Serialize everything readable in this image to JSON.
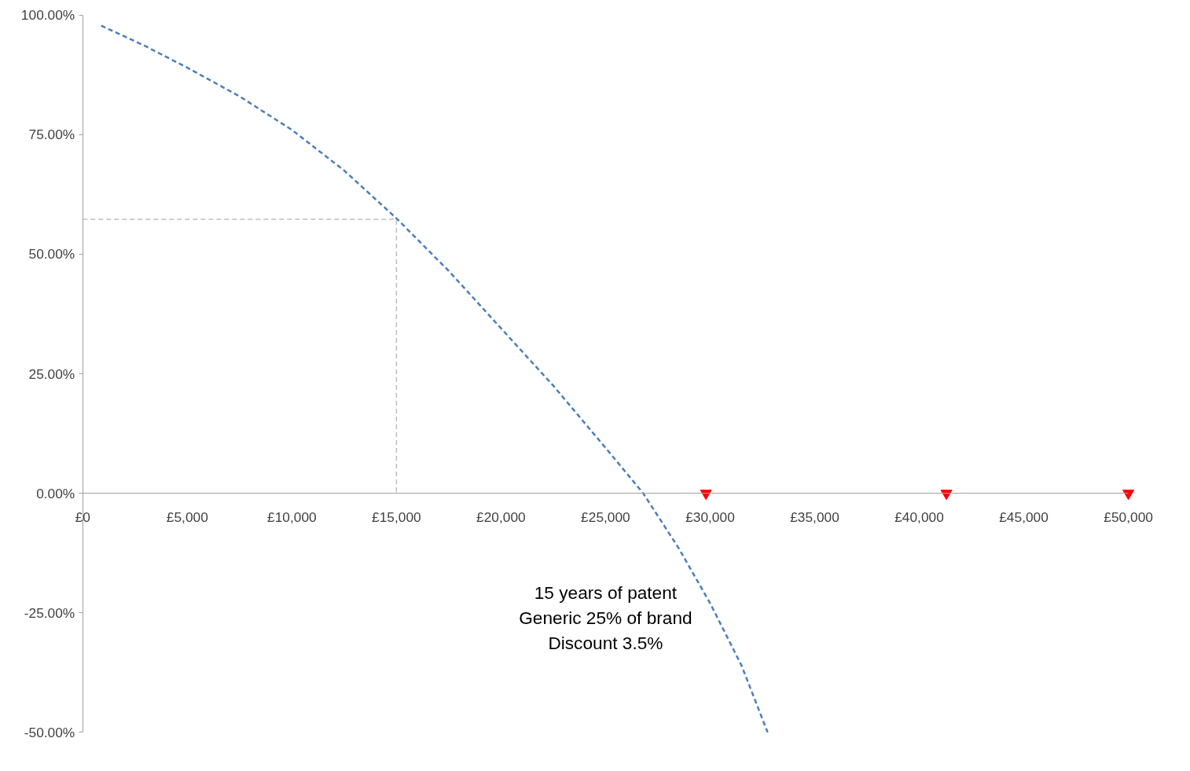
{
  "chart_data": {
    "type": "line",
    "xlim": [
      0,
      50000
    ],
    "ylim": [
      -50,
      100
    ],
    "xticks": [
      {
        "value": 0,
        "label": "£0"
      },
      {
        "value": 5000,
        "label": "£5,000"
      },
      {
        "value": 10000,
        "label": "£10,000"
      },
      {
        "value": 15000,
        "label": "£15,000"
      },
      {
        "value": 20000,
        "label": "£20,000"
      },
      {
        "value": 25000,
        "label": "£25,000"
      },
      {
        "value": 30000,
        "label": "£30,000"
      },
      {
        "value": 35000,
        "label": "£35,000"
      },
      {
        "value": 40000,
        "label": "£40,000"
      },
      {
        "value": 45000,
        "label": "£45,000"
      },
      {
        "value": 50000,
        "label": "£50,000"
      }
    ],
    "yticks": [
      {
        "value": 100,
        "label": "100.00%"
      },
      {
        "value": 75,
        "label": "75.00%"
      },
      {
        "value": 50,
        "label": "50.00%"
      },
      {
        "value": 25,
        "label": "25.00%"
      },
      {
        "value": 0,
        "label": "0.00%"
      },
      {
        "value": -25,
        "label": "-25.00%"
      },
      {
        "value": -50,
        "label": "-50.00%"
      }
    ],
    "grid": false,
    "series": [
      {
        "color": "#4a7ebb",
        "line_style": "dashed",
        "x": [
          880,
          3000,
          5000,
          7500,
          10000,
          12500,
          15000,
          17500,
          20000,
          22500,
          25000,
          26800,
          28500,
          30000,
          31500,
          32750
        ],
        "values": [
          97.8,
          93.5,
          89,
          83,
          76,
          67.5,
          57.5,
          46.5,
          34.5,
          22.5,
          9.5,
          0,
          -11.5,
          -23,
          -36,
          -50
        ]
      },
      {
        "type": "line",
        "color": "#bfbfbf",
        "line_style": "dashed",
        "x": [
          0,
          15000,
          15000
        ],
        "values": [
          57.3,
          57.3,
          0
        ]
      },
      {
        "type": "scatter",
        "marker": "triangle",
        "color": "#ff0000",
        "x": [
          29800,
          41300,
          50000
        ],
        "values": [
          0,
          0,
          0
        ]
      }
    ],
    "annotations": [
      "15 years of patent",
      "Generic 25% of brand",
      "Discount 3.5%"
    ]
  }
}
